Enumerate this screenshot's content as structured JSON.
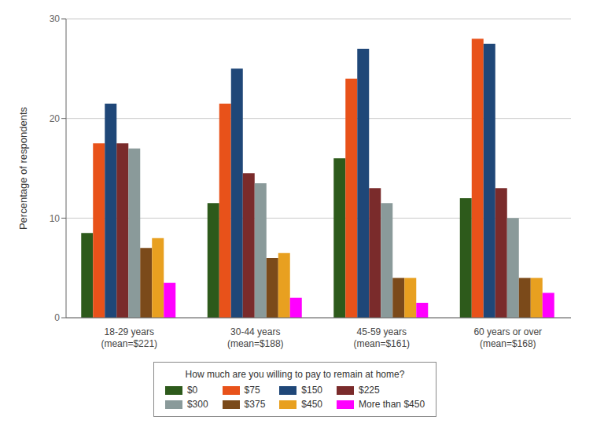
{
  "chart_data": {
    "type": "bar",
    "categories": [
      "18-29 years\n(mean=$221)",
      "30-44 years\n(mean=$188)",
      "45-59 years\n(mean=$161)",
      "60 years or over\n(mean=$168)"
    ],
    "series": [
      {
        "name": "$0",
        "color": "#2d5a1b",
        "values": [
          8.5,
          11.5,
          16.0,
          12.0
        ]
      },
      {
        "name": "$75",
        "color": "#e8521a",
        "values": [
          17.5,
          21.5,
          24.0,
          28.0
        ]
      },
      {
        "name": "$150",
        "color": "#1f4778",
        "values": [
          21.5,
          25.0,
          27.0,
          27.5
        ]
      },
      {
        "name": "$225",
        "color": "#7a2b2b",
        "values": [
          17.5,
          14.5,
          13.0,
          13.0
        ]
      },
      {
        "name": "$300",
        "color": "#8a9a9a",
        "values": [
          17.0,
          13.5,
          11.5,
          10.0
        ]
      },
      {
        "name": "$375",
        "color": "#7b4a1a",
        "values": [
          7.0,
          6.0,
          4.0,
          4.0
        ]
      },
      {
        "name": "$450",
        "color": "#e8a020",
        "values": [
          8.0,
          6.5,
          4.0,
          4.0
        ]
      },
      {
        "name": "More than $450",
        "color": "#ff00ff",
        "values": [
          3.5,
          2.0,
          1.5,
          2.5
        ]
      }
    ],
    "ylabel": "Percentage of respondents",
    "ylim": [
      0,
      30
    ],
    "yticks": [
      0,
      10,
      20,
      30
    ],
    "grid": true,
    "legend": "bottom",
    "legend_title": "How much are you willing to pay to remain at home?"
  }
}
